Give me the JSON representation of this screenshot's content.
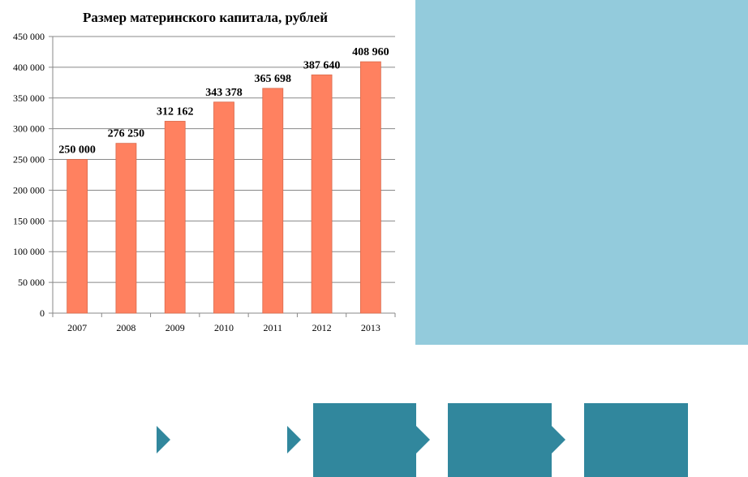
{
  "chart_data": {
    "type": "bar",
    "title": "Размер материнского капитала, рублей",
    "categories": [
      "2007",
      "2008",
      "2009",
      "2010",
      "2011",
      "2012",
      "2013"
    ],
    "values": [
      250000,
      276250,
      312162,
      343378,
      365698,
      387640,
      408960
    ],
    "data_labels": [
      "250 000",
      "276 250",
      "312 162",
      "343 378",
      "365 698",
      "387 640",
      "408 960"
    ],
    "ylim": [
      0,
      450000
    ],
    "yticks": [
      0,
      50000,
      100000,
      150000,
      200000,
      250000,
      300000,
      350000,
      400000,
      450000
    ],
    "ytick_labels": [
      "0",
      "50 000",
      "100 000",
      "150 000",
      "200 000",
      "250 000",
      "300 000",
      "350 000",
      "400 000",
      "450 000"
    ],
    "grid": true,
    "bar_color": "#ff8160",
    "bar_edge_color": "#d96a4c"
  },
  "decor": {
    "panel_color": "#93cbdc",
    "arrow_color": "#31879d"
  }
}
